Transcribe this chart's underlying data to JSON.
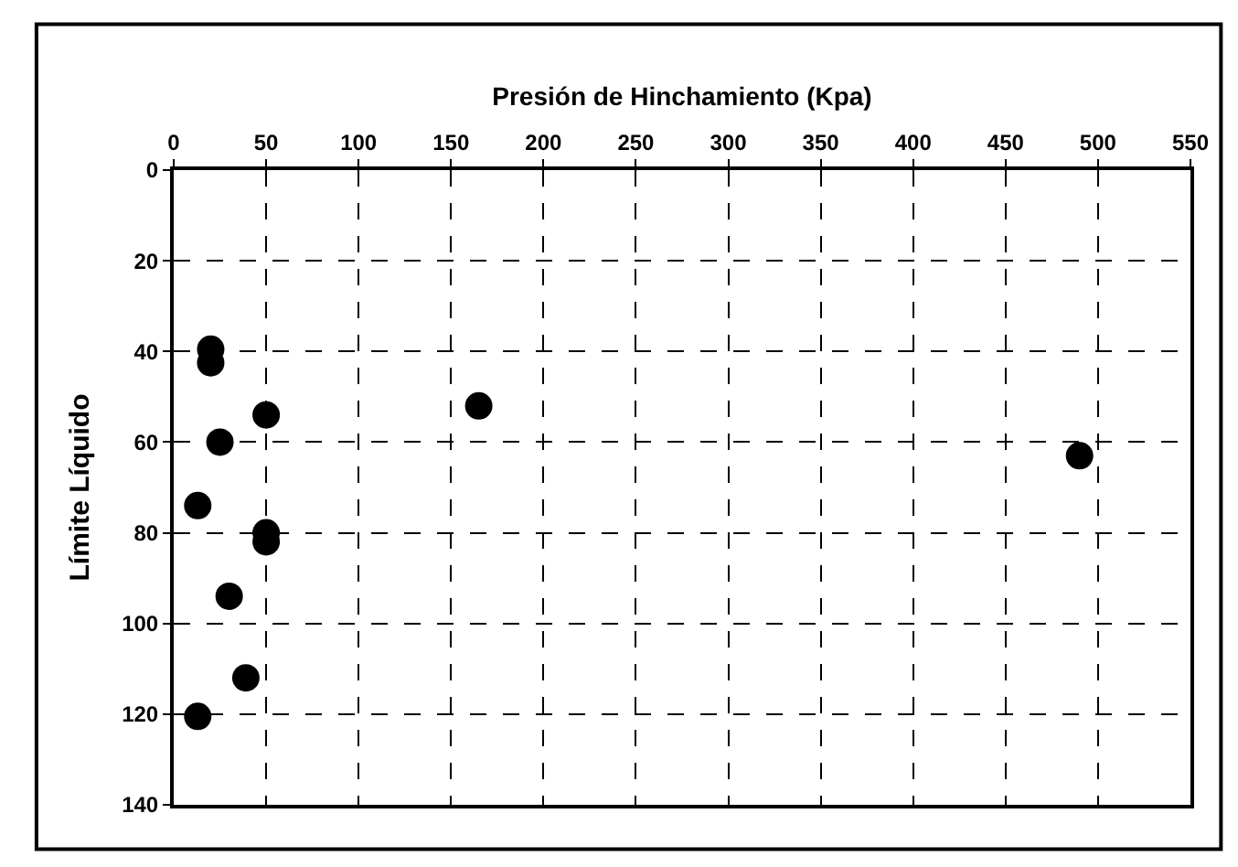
{
  "chart_data": {
    "type": "scatter",
    "xlabel": "Presión de Hinchamiento (Kpa)",
    "ylabel": "Límite Líquido",
    "x": [
      20,
      20,
      50,
      25,
      165,
      13,
      50,
      50,
      30,
      39,
      13,
      490
    ],
    "series": [
      {
        "color": "#000000",
        "values": [
          39.5,
          42.5,
          54,
          60,
          52,
          74,
          80,
          82,
          94,
          112,
          120.5,
          63
        ]
      }
    ],
    "xlim": [
      0,
      550
    ],
    "xticks": [
      0,
      50,
      100,
      150,
      200,
      250,
      300,
      350,
      400,
      450,
      500,
      550
    ],
    "ylim": [
      140,
      0
    ],
    "yticks": [
      0,
      20,
      40,
      60,
      80,
      100,
      120,
      140
    ],
    "grid": true,
    "marker": "circle",
    "legend": false
  }
}
